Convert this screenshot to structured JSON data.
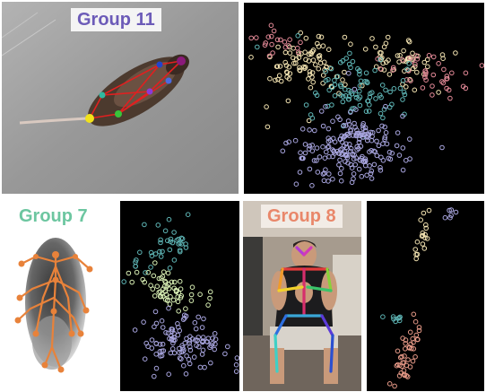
{
  "groups": [
    {
      "label": "Group 11",
      "color": "#6c5bb8"
    },
    {
      "label": "Group 7",
      "color": "#6cc6a0"
    },
    {
      "label": "Group 8",
      "color": "#e9876a"
    }
  ],
  "palette": {
    "cream": "#f4e4b2",
    "pink": "#e48a98",
    "teal": "#5fb6b6",
    "lavender": "#a9a6e0",
    "mint": "#d8efb4",
    "salmon": "#e79a88",
    "background": "#000000"
  },
  "scenes": {
    "rat": "top-down rat with red skeleton keypoints",
    "fly": "grey fly silhouette with orange skeleton",
    "person": "seated person with rainbow pose skeleton"
  }
}
